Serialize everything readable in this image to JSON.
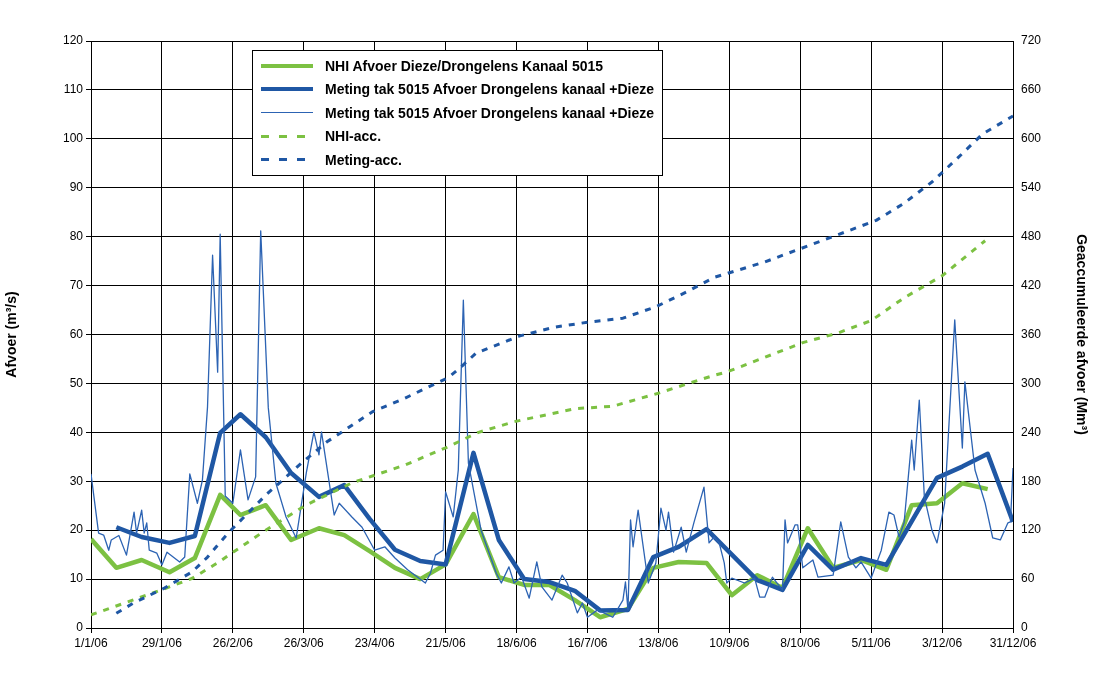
{
  "chart_data": {
    "type": "line",
    "ylabel": "Afvoer (m³/s)",
    "y2label": "Geaccumuleerde afvoer (Mm³)",
    "xlim": [
      "2006-01-01",
      "2006-12-31"
    ],
    "xticks": [
      {
        "value": "2006-01-01",
        "label": "1/1/06"
      },
      {
        "value": "2006-01-29",
        "label": "29/1/06"
      },
      {
        "value": "2006-02-26",
        "label": "26/2/06"
      },
      {
        "value": "2006-03-26",
        "label": "26/3/06"
      },
      {
        "value": "2006-04-23",
        "label": "23/4/06"
      },
      {
        "value": "2006-05-21",
        "label": "21/5/06"
      },
      {
        "value": "2006-06-18",
        "label": "18/6/06"
      },
      {
        "value": "2006-07-16",
        "label": "16/7/06"
      },
      {
        "value": "2006-08-13",
        "label": "13/8/06"
      },
      {
        "value": "2006-09-10",
        "label": "10/9/06"
      },
      {
        "value": "2006-10-08",
        "label": "8/10/06"
      },
      {
        "value": "2006-11-05",
        "label": "5/11/06"
      },
      {
        "value": "2006-12-03",
        "label": "3/12/06"
      },
      {
        "value": "2006-12-31",
        "label": "31/12/06"
      }
    ],
    "ylim": [
      0,
      120
    ],
    "yticks": [
      0,
      10,
      20,
      30,
      40,
      50,
      60,
      70,
      80,
      90,
      100,
      110,
      120
    ],
    "y2lim": [
      0,
      720
    ],
    "y2ticks": [
      0,
      60,
      120,
      180,
      240,
      300,
      360,
      420,
      480,
      540,
      600,
      660,
      720
    ],
    "grid": true,
    "legend": "top",
    "line_style": "solid",
    "series": [
      {
        "name": "NHI Afvoer Dieze/Drongelens Kanaal 5015",
        "color": "#7cc142",
        "x": [
          "2006-01-01",
          "2006-01-11",
          "2006-01-21",
          "2006-02-01",
          "2006-02-11",
          "2006-02-21",
          "2006-03-01",
          "2006-03-11",
          "2006-03-21",
          "2006-04-01",
          "2006-04-11",
          "2006-04-21",
          "2006-05-01",
          "2006-05-11",
          "2006-05-21",
          "2006-06-01",
          "2006-06-11",
          "2006-06-21",
          "2006-07-01",
          "2006-07-11",
          "2006-07-21",
          "2006-08-01",
          "2006-08-11",
          "2006-08-21",
          "2006-09-01",
          "2006-09-11",
          "2006-09-21",
          "2006-10-01",
          "2006-10-11",
          "2006-10-21",
          "2006-11-01",
          "2006-11-11",
          "2006-11-21",
          "2006-12-01",
          "2006-12-11",
          "2006-12-21"
        ],
        "values": [
          18.2,
          12.3,
          13.9,
          11.4,
          14.3,
          27.2,
          23.1,
          25.1,
          18.0,
          20.4,
          19.0,
          15.7,
          12.3,
          10.0,
          13.0,
          23.3,
          10.4,
          8.8,
          8.8,
          5.7,
          2.2,
          3.9,
          12.3,
          13.5,
          13.3,
          6.7,
          10.8,
          8.2,
          20.4,
          12.3,
          13.9,
          11.9,
          25.1,
          25.5,
          29.6,
          28.4
        ]
      },
      {
        "name": "Meting tak 5015 Afvoer Drongelens kanaal +Dieze",
        "color": "#1f57a4",
        "x": [
          "2006-01-11",
          "2006-01-21",
          "2006-02-01",
          "2006-02-11",
          "2006-02-21",
          "2006-03-01",
          "2006-03-11",
          "2006-03-21",
          "2006-04-01",
          "2006-04-11",
          "2006-04-21",
          "2006-05-01",
          "2006-05-11",
          "2006-05-21",
          "2006-06-01",
          "2006-06-11",
          "2006-06-21",
          "2006-07-01",
          "2006-07-11",
          "2006-07-21",
          "2006-08-01",
          "2006-08-11",
          "2006-08-21",
          "2006-09-01",
          "2006-09-11",
          "2006-09-21",
          "2006-10-01",
          "2006-10-11",
          "2006-10-21",
          "2006-11-01",
          "2006-11-11",
          "2006-11-21",
          "2006-12-01",
          "2006-12-11",
          "2006-12-21",
          "2006-12-31"
        ],
        "values": [
          20.6,
          18.6,
          17.4,
          18.8,
          39.9,
          43.7,
          39.0,
          31.7,
          26.8,
          29.2,
          22.3,
          16.0,
          13.7,
          13.0,
          35.8,
          18.0,
          10.0,
          9.4,
          7.6,
          3.6,
          3.7,
          14.5,
          16.6,
          20.2,
          15.0,
          9.8,
          7.8,
          17.0,
          11.9,
          14.3,
          12.9,
          21.8,
          30.7,
          33.0,
          35.6,
          21.7
        ]
      },
      {
        "name": "Meting tak 5015 Afvoer Drongelens kanaal +Dieze",
        "color": "#2c63b3",
        "x": [
          "2006-01-01",
          "2006-01-04",
          "2006-01-06",
          "2006-01-08",
          "2006-01-09",
          "2006-01-12",
          "2006-01-15",
          "2006-01-18",
          "2006-01-19",
          "2006-01-21",
          "2006-01-22",
          "2006-01-23",
          "2006-01-24",
          "2006-01-27",
          "2006-01-29",
          "2006-01-31",
          "2006-02-05",
          "2006-02-07",
          "2006-02-09",
          "2006-02-12",
          "2006-02-14",
          "2006-02-16",
          "2006-02-18",
          "2006-02-20",
          "2006-02-21",
          "2006-02-23",
          "2006-02-26",
          "2006-03-01",
          "2006-03-04",
          "2006-03-07",
          "2006-03-09",
          "2006-03-12",
          "2006-03-15",
          "2006-03-19",
          "2006-03-23",
          "2006-03-27",
          "2006-03-30",
          "2006-04-01",
          "2006-04-02",
          "2006-04-07",
          "2006-04-09",
          "2006-04-14",
          "2006-04-18",
          "2006-04-23",
          "2006-04-27",
          "2006-05-01",
          "2006-05-06",
          "2006-05-13",
          "2006-05-15",
          "2006-05-17",
          "2006-05-20",
          "2006-05-21",
          "2006-05-24",
          "2006-05-26",
          "2006-05-28",
          "2006-05-30",
          "2006-06-04",
          "2006-06-10",
          "2006-06-12",
          "2006-06-15",
          "2006-06-17",
          "2006-06-20",
          "2006-06-23",
          "2006-06-26",
          "2006-06-28",
          "2006-07-02",
          "2006-07-06",
          "2006-07-08",
          "2006-07-12",
          "2006-07-14",
          "2006-07-16",
          "2006-07-20",
          "2006-07-26",
          "2006-07-30",
          "2006-07-31",
          "2006-08-01",
          "2006-08-02",
          "2006-08-03",
          "2006-08-05",
          "2006-08-09",
          "2006-08-12",
          "2006-08-14",
          "2006-08-16",
          "2006-08-17",
          "2006-08-19",
          "2006-08-22",
          "2006-08-24",
          "2006-08-27",
          "2006-08-31",
          "2006-09-02",
          "2006-09-04",
          "2006-09-06",
          "2006-09-08",
          "2006-09-09",
          "2006-09-11",
          "2006-09-16",
          "2006-09-20",
          "2006-09-22",
          "2006-09-24",
          "2006-09-27",
          "2006-10-01",
          "2006-10-02",
          "2006-10-03",
          "2006-10-06",
          "2006-10-07",
          "2006-10-09",
          "2006-10-13",
          "2006-10-15",
          "2006-10-21",
          "2006-10-24",
          "2006-10-27",
          "2006-10-30",
          "2006-11-01",
          "2006-11-05",
          "2006-11-09",
          "2006-11-12",
          "2006-11-14",
          "2006-11-16",
          "2006-11-18",
          "2006-11-21",
          "2006-11-22",
          "2006-11-24",
          "2006-11-26",
          "2006-11-29",
          "2006-12-01",
          "2006-12-04",
          "2006-12-08",
          "2006-12-11",
          "2006-12-12",
          "2006-12-16",
          "2006-12-20",
          "2006-12-23",
          "2006-12-26",
          "2006-12-29",
          "2006-12-30",
          "2006-12-31"
        ],
        "values": [
          31.5,
          19.4,
          19.0,
          15.9,
          18.0,
          18.9,
          14.9,
          23.7,
          19.4,
          24.1,
          19.4,
          21.5,
          15.9,
          15.3,
          12.9,
          15.5,
          13.5,
          14.5,
          31.5,
          25.5,
          30.3,
          45.2,
          76.2,
          52.3,
          80.5,
          27,
          25.5,
          36.4,
          26.2,
          30.9,
          81.2,
          45,
          29.6,
          22.7,
          18.4,
          31.7,
          40.1,
          35.4,
          40.1,
          23.1,
          25.5,
          22.7,
          20.6,
          15.9,
          16.6,
          14.3,
          11.9,
          9.2,
          11.2,
          14.9,
          15.9,
          27.8,
          22.7,
          32.3,
          67.0,
          33.7,
          20.0,
          11.2,
          9.2,
          12.5,
          9.2,
          10.4,
          6.1,
          13.5,
          8.4,
          5.7,
          10.8,
          9.2,
          3.1,
          5.1,
          2.2,
          3.7,
          2.2,
          5.7,
          9.4,
          3.7,
          22.1,
          16.6,
          24.1,
          9.2,
          13.3,
          24.5,
          20.0,
          23.7,
          15.5,
          20.6,
          15.5,
          21.5,
          28.8,
          17.4,
          18.6,
          17.4,
          13.3,
          9.2,
          10.2,
          9.2,
          10.2,
          6.3,
          6.3,
          10.4,
          7.8,
          22.1,
          17.4,
          21.1,
          21.1,
          12.3,
          13.9,
          10.4,
          10.8,
          21.7,
          14.5,
          12.3,
          13.5,
          10.2,
          15.9,
          23.7,
          23.1,
          18.6,
          21.5,
          38.4,
          32.3,
          46.6,
          26.8,
          20.0,
          17.4,
          25.5,
          63.0,
          36.8,
          50.3,
          32.3,
          25.5,
          18.4,
          18.0,
          21.5,
          21.7,
          32.7
        ]
      },
      {
        "name": "NHI-acc.",
        "color": "#7cc142",
        "axis": "y2",
        "line_style": "dashed",
        "x": [
          "2006-01-01",
          "2006-01-29",
          "2006-02-10",
          "2006-02-20",
          "2006-03-10",
          "2006-03-27",
          "2006-04-14",
          "2006-05-05",
          "2006-05-21",
          "2006-06-03",
          "2006-06-17",
          "2006-07-11",
          "2006-07-26",
          "2006-08-13",
          "2006-09-04",
          "2006-09-09",
          "2006-10-09",
          "2006-10-23",
          "2006-11-05",
          "2006-11-18",
          "2006-12-03",
          "2006-12-20"
        ],
        "values": [
          16,
          47,
          61,
          80,
          118,
          151,
          178,
          200,
          221,
          240,
          253,
          269,
          272,
          288,
          310,
          314,
          350,
          362,
          377,
          405,
          432,
          475
        ]
      },
      {
        "name": "Meting-acc.",
        "color": "#1f57a4",
        "axis": "y2",
        "line_style": "dashed",
        "x": [
          "2006-01-11",
          "2006-01-18",
          "2006-01-30",
          "2006-02-10",
          "2006-02-16",
          "2006-02-24",
          "2006-03-11",
          "2006-03-25",
          "2006-04-04",
          "2006-04-22",
          "2006-05-05",
          "2006-05-22",
          "2006-05-27",
          "2006-06-02",
          "2006-06-19",
          "2006-07-03",
          "2006-07-16",
          "2006-07-30",
          "2006-08-12",
          "2006-08-24",
          "2006-09-04",
          "2006-09-24",
          "2006-10-07",
          "2006-10-26",
          "2006-11-07",
          "2006-11-18",
          "2006-11-29",
          "2006-12-09",
          "2006-12-19",
          "2006-12-31"
        ],
        "values": [
          18,
          31,
          49,
          69,
          87,
          116,
          163,
          202,
          228,
          265,
          282,
          307,
          320,
          337,
          358,
          369,
          375,
          380,
          394,
          412,
          430,
          449,
          464,
          486,
          500,
          521,
          547,
          576,
          606,
          628
        ]
      }
    ]
  }
}
